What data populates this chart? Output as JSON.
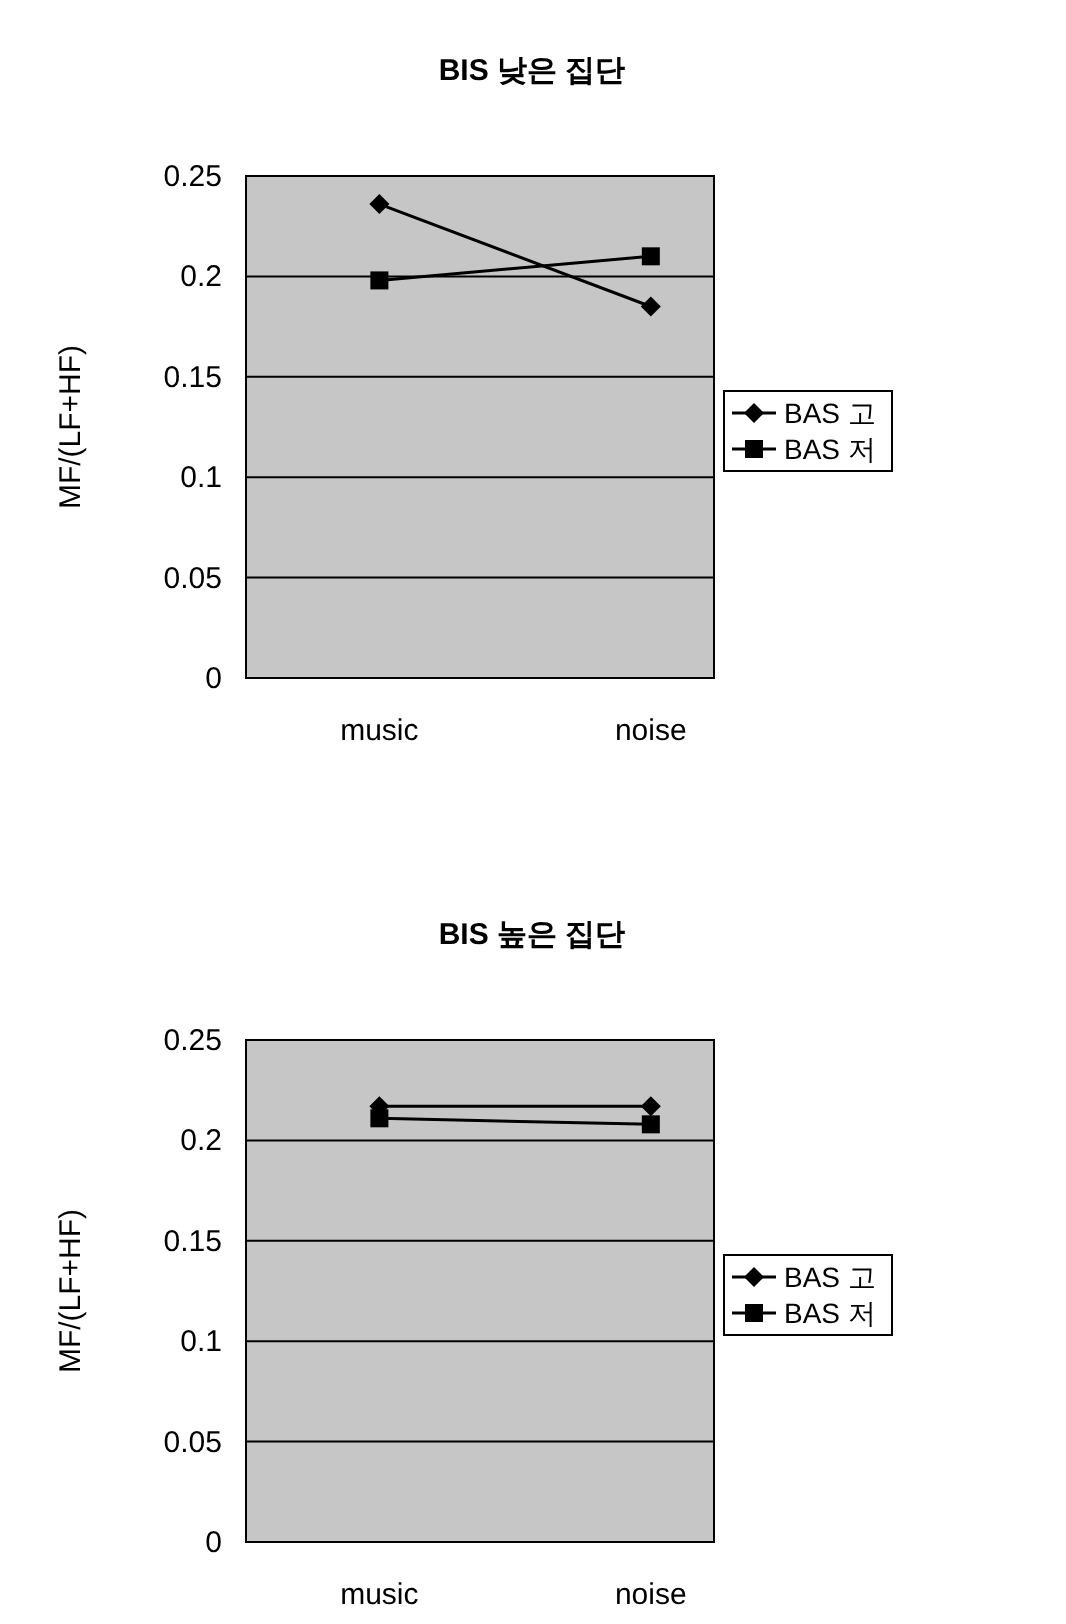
{
  "chart_data": [
    {
      "type": "line",
      "title": "BIS 낮은 집단",
      "ylabel": "MF/(LF+HF)",
      "categories": [
        "music",
        "noise"
      ],
      "ylim": [
        0,
        0.25
      ],
      "yticks": [
        0,
        0.05,
        0.1,
        0.15,
        0.2,
        0.25
      ],
      "grid": "y",
      "legend": "right",
      "series": [
        {
          "name": "BAS 고",
          "color": "#000000",
          "marker": "diamond",
          "values": [
            0.236,
            0.185
          ]
        },
        {
          "name": "BAS 저",
          "color": "#000000",
          "marker": "square",
          "values": [
            0.198,
            0.21
          ]
        }
      ]
    },
    {
      "type": "line",
      "title": "BIS 높은 집단",
      "ylabel": "MF/(LF+HF)",
      "categories": [
        "music",
        "noise"
      ],
      "ylim": [
        0,
        0.25
      ],
      "yticks": [
        0,
        0.05,
        0.1,
        0.15,
        0.2,
        0.25
      ],
      "grid": "y",
      "legend": "right",
      "series": [
        {
          "name": "BAS 고",
          "color": "#000000",
          "marker": "diamond",
          "values": [
            0.217,
            0.217
          ]
        },
        {
          "name": "BAS 저",
          "color": "#000000",
          "marker": "square",
          "values": [
            0.211,
            0.208
          ]
        }
      ]
    }
  ]
}
